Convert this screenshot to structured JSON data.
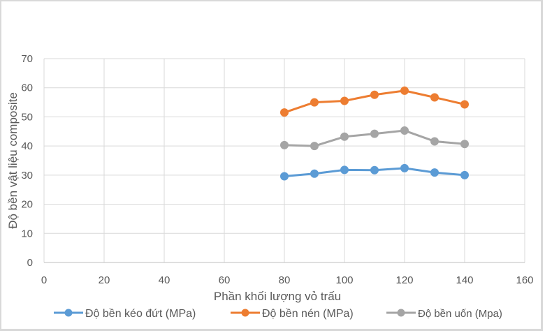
{
  "chart_data": {
    "type": "line",
    "title": "",
    "xlabel": "Phần khối lượng vỏ trấu",
    "ylabel": "Độ bền vật liệu composite",
    "xlim": [
      0,
      160
    ],
    "ylim": [
      0,
      70
    ],
    "x_ticks": [
      "0",
      "20",
      "40",
      "60",
      "80",
      "100",
      "120",
      "140",
      "160"
    ],
    "y_ticks": [
      "0",
      "10",
      "20",
      "30",
      "40",
      "50",
      "60",
      "70"
    ],
    "grid": true,
    "legend_position": "bottom",
    "x": [
      80,
      90,
      100,
      110,
      120,
      130,
      140
    ],
    "series": [
      {
        "name": "Độ bền kéo đứt (MPa)",
        "color": "#5b9bd5",
        "values": [
          29.6,
          30.5,
          31.8,
          31.7,
          32.4,
          30.9,
          30.0
        ]
      },
      {
        "name": "Độ bền nén (MPa)",
        "color": "#ed7d31",
        "values": [
          51.5,
          55.0,
          55.5,
          57.6,
          59.0,
          56.7,
          54.3
        ]
      },
      {
        "name": "Độ bền uốn (Mpa)",
        "color": "#a5a5a5",
        "values": [
          40.3,
          40.0,
          43.2,
          44.2,
          45.3,
          41.6,
          40.7
        ]
      }
    ]
  }
}
